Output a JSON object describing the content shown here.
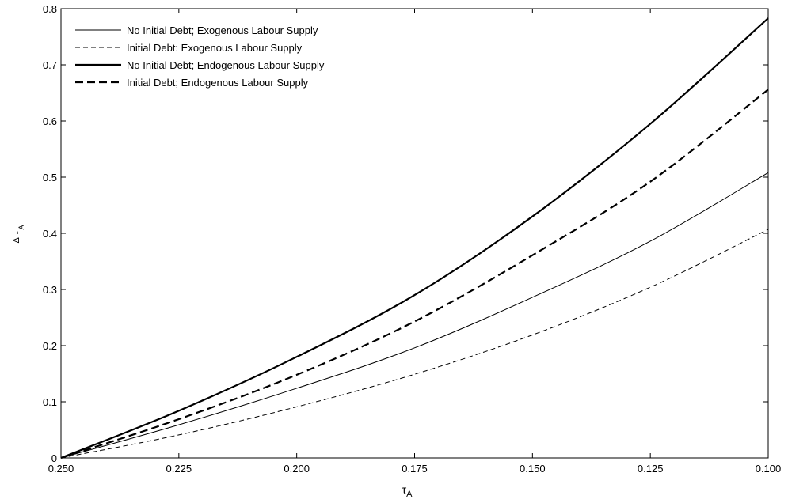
{
  "chart_data": {
    "type": "line",
    "xlabel": "τ",
    "xlabel_sub": "A",
    "ylabel": "Δ",
    "ylabel_sub1": "τ",
    "ylabel_sub2": "A",
    "xlim": [
      0.25,
      0.1
    ],
    "ylim": [
      0,
      0.8
    ],
    "x_ticks": [
      0.25,
      0.225,
      0.2,
      0.175,
      0.15,
      0.125,
      0.1
    ],
    "x_tick_labels": [
      "0.250",
      "0.225",
      "0.200",
      "0.175",
      "0.150",
      "0.125",
      "0.100"
    ],
    "y_ticks": [
      0,
      0.1,
      0.2,
      0.3,
      0.4,
      0.5,
      0.6,
      0.7,
      0.8
    ],
    "y_tick_labels": [
      "0",
      "0.1",
      "0.2",
      "0.3",
      "0.4",
      "0.5",
      "0.6",
      "0.7",
      "0.8"
    ],
    "grid": false,
    "legend_position": "top-left",
    "x": [
      0.25,
      0.225,
      0.2,
      0.175,
      0.15,
      0.125,
      0.1
    ],
    "series": [
      {
        "name": "No Initial Debt; Exogenous Labour Supply",
        "style": "thin-solid",
        "values": [
          0,
          0.059,
          0.124,
          0.196,
          0.286,
          0.386,
          0.508
        ]
      },
      {
        "name": "Initial Debt: Exogenous Labour Supply",
        "style": "thin-dashed",
        "values": [
          0,
          0.041,
          0.091,
          0.149,
          0.219,
          0.304,
          0.407
        ]
      },
      {
        "name": "No Initial Debt; Endogenous Labour Supply",
        "style": "thick-solid",
        "values": [
          0,
          0.084,
          0.18,
          0.29,
          0.43,
          0.595,
          0.783
        ]
      },
      {
        "name": "Initial Debt; Endogenous Labour Supply",
        "style": "thick-dashed",
        "values": [
          0,
          0.069,
          0.148,
          0.243,
          0.361,
          0.492,
          0.656
        ]
      }
    ]
  }
}
